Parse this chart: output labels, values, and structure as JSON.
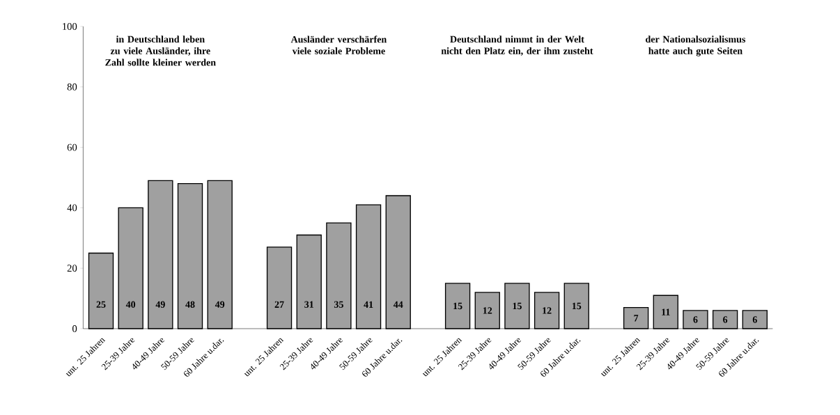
{
  "chart_data": {
    "type": "bar",
    "categories": [
      "unt. 25 Jahren",
      "25-39 Jahre",
      "40-49 Jahre",
      "50-59 Jahre",
      "60 Jahre u.dar.",
      null,
      "unt. 25 Jahren",
      "25-39 Jahre",
      "40-49 Jahre",
      "50-59 Jahre",
      "60 Jahre u.dar.",
      null,
      "unt. 25 Jahren",
      "25-39 Jahre",
      "40-49 Jahre",
      "50-59 Jahre",
      "60 Jahre u.dar.",
      null,
      "unt. 25 Jahren",
      "25-39 Jahre",
      "40-49 Jahre",
      "50-59 Jahre",
      "60 Jahre u.dar."
    ],
    "values": [
      25,
      40,
      49,
      48,
      49,
      null,
      27,
      31,
      35,
      41,
      44,
      null,
      15,
      12,
      15,
      12,
      15,
      null,
      7,
      11,
      6,
      6,
      6
    ],
    "color": "#a0a0a0",
    "ylim": [
      0,
      100
    ],
    "yticks": [
      0,
      20,
      40,
      60,
      80,
      100
    ],
    "data_labels": true,
    "annotations": [
      "in Deutschland leben zu viele Ausländer, ihre Zahl sollte kleiner werden",
      "Ausländer verschärfen viele soziale Probleme",
      "Deutschland nimmt in der Welt nicht den Platz ein, der ihm zusteht",
      "der Nationalsozialismus hatte auch gute Seiten"
    ]
  }
}
